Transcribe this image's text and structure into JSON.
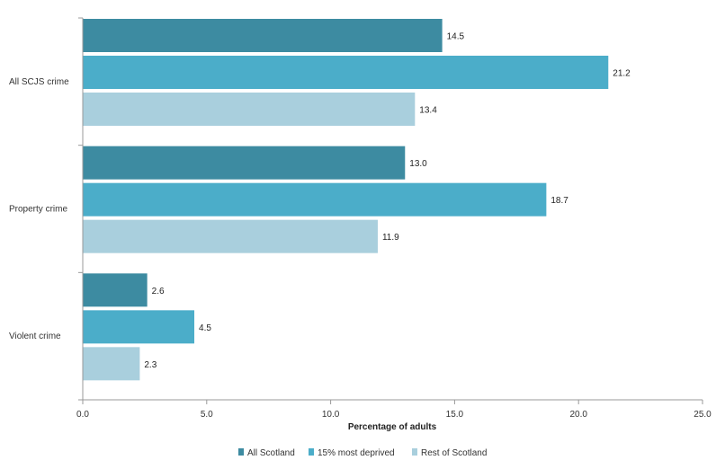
{
  "chart_data": {
    "type": "bar",
    "orientation": "horizontal",
    "categories": [
      "All SCJS crime",
      "Property crime",
      "Violent crime"
    ],
    "series": [
      {
        "name": "All Scotland",
        "values": [
          14.5,
          13.0,
          2.6
        ],
        "color": "#3d8ba1"
      },
      {
        "name": "15% most deprived",
        "values": [
          21.2,
          18.7,
          4.5
        ],
        "color": "#4badc9"
      },
      {
        "name": "Rest of Scotland",
        "values": [
          13.4,
          11.9,
          2.3
        ],
        "color": "#a9cfdd"
      }
    ],
    "data_labels": [
      [
        "14.5",
        "13.0",
        "2.6"
      ],
      [
        "21.2",
        "18.7",
        "4.5"
      ],
      [
        "13.4",
        "11.9",
        "2.3"
      ]
    ],
    "xlabel": "Percentage of adults",
    "xlim": [
      0,
      25
    ],
    "xticks": [
      "0.0",
      "5.0",
      "10.0",
      "15.0",
      "20.0",
      "25.0"
    ],
    "grid": false,
    "legend_position": "bottom"
  }
}
